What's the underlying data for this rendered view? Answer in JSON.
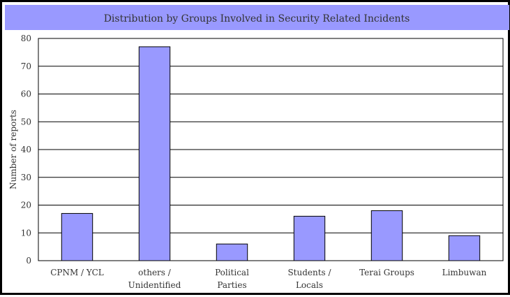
{
  "chart_data": {
    "type": "bar",
    "title": "Distribution by Groups Involved in Security Related Incidents",
    "xlabel": "",
    "ylabel": "Number of reports",
    "categories": [
      [
        "CPNM / YCL"
      ],
      [
        "others /",
        "Unidentified"
      ],
      [
        "Political",
        "Parties"
      ],
      [
        "Students /",
        "Locals"
      ],
      [
        "Terai Groups"
      ],
      [
        "Limbuwan"
      ]
    ],
    "values": [
      17,
      77,
      6,
      16,
      18,
      9
    ],
    "ylim": [
      0,
      80
    ],
    "yticks": [
      0,
      10,
      20,
      30,
      40,
      50,
      60,
      70,
      80
    ],
    "grid": true,
    "legend": "none",
    "colors": {
      "bar_fill": "#9999ff",
      "bar_stroke": "#000000",
      "title_band": "#9999ff",
      "plot_bg": "#ffffff",
      "gridline": "#000000",
      "text": "#333333",
      "frame": "#000000"
    }
  }
}
